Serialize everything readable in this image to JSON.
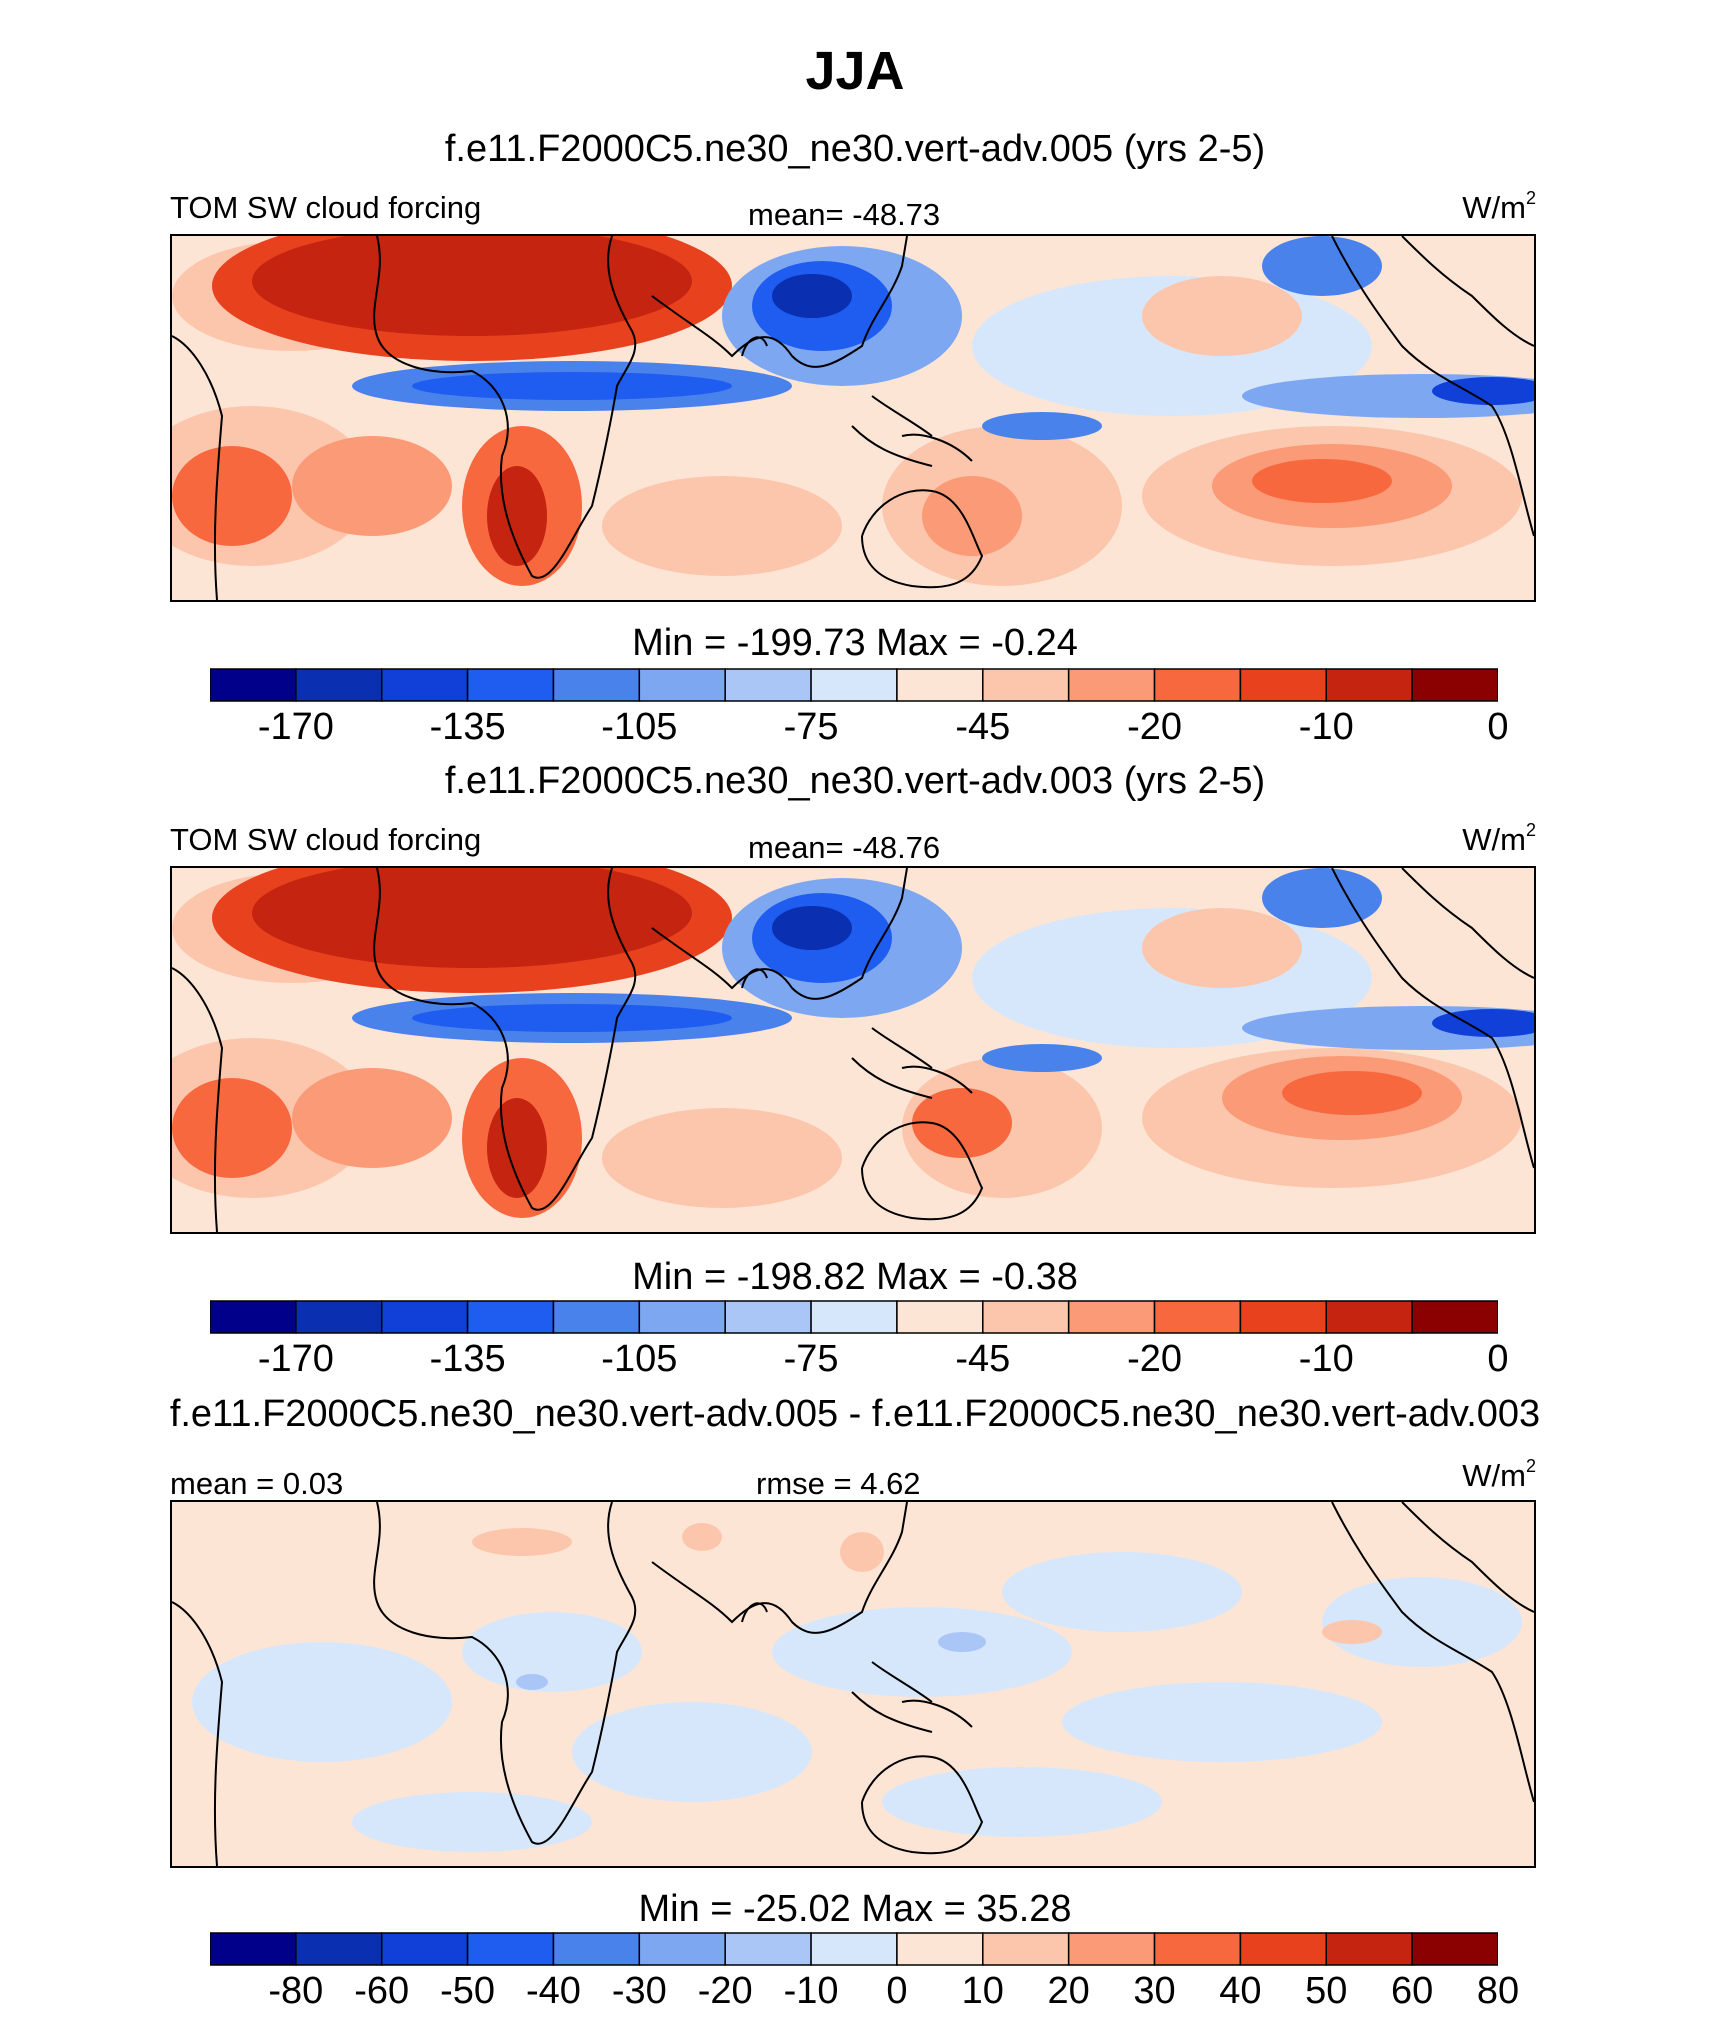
{
  "title": "JJA",
  "chart_data": [
    {
      "type": "heatmap",
      "title": "f.e11.F2000C5.ne30_ne30.vert-adv.005 (yrs 2-5)",
      "left_label": "TOM SW cloud forcing",
      "center_label": "mean= -48.73",
      "units": "W/m",
      "units_sup": "2",
      "minmax": "Min = -199.73 Max =  -0.24",
      "colorbar_ticks": [
        "-170",
        "-135",
        "-105",
        "-75",
        "-45",
        "-20",
        "-10",
        "0"
      ],
      "tick_boundaries": [
        1,
        3,
        5,
        7,
        9,
        11,
        13,
        15
      ],
      "min": -199.73,
      "max": -0.24,
      "mean": -48.73
    },
    {
      "type": "heatmap",
      "title": "f.e11.F2000C5.ne30_ne30.vert-adv.003 (yrs 2-5)",
      "left_label": "TOM SW cloud forcing",
      "center_label": "mean= -48.76",
      "units": "W/m",
      "units_sup": "2",
      "minmax": "Min = -198.82 Max =  -0.38",
      "colorbar_ticks": [
        "-170",
        "-135",
        "-105",
        "-75",
        "-45",
        "-20",
        "-10",
        "0"
      ],
      "tick_boundaries": [
        1,
        3,
        5,
        7,
        9,
        11,
        13,
        15
      ],
      "min": -198.82,
      "max": -0.38,
      "mean": -48.76
    },
    {
      "type": "heatmap",
      "title": "f.e11.F2000C5.ne30_ne30.vert-adv.005 - f.e11.F2000C5.ne30_ne30.vert-adv.003",
      "left_label": "mean =   0.03",
      "center_label": "rmse =   4.62",
      "units": "W/m",
      "units_sup": "2",
      "minmax": "Min = -25.02 Max =  35.28",
      "colorbar_ticks": [
        "-80",
        "-60",
        "-50",
        "-40",
        "-30",
        "-20",
        "-10",
        "0",
        "10",
        "20",
        "30",
        "40",
        "50",
        "60",
        "80"
      ],
      "tick_boundaries": [
        1,
        2,
        3,
        4,
        5,
        6,
        7,
        8,
        9,
        10,
        11,
        12,
        13,
        14,
        15
      ],
      "min": -25.02,
      "max": 35.28,
      "mean": 0.03,
      "rmse": 4.62
    }
  ],
  "colors": {
    "palette": [
      "#00008b",
      "#0a2fb0",
      "#1040d8",
      "#1f5cf0",
      "#4a82ec",
      "#7ea7f2",
      "#aac6f7",
      "#d7e7fb",
      "#fde5d6",
      "#fcc6ad",
      "#fb9a77",
      "#f8683f",
      "#e8411e",
      "#c52410",
      "#8b0000"
    ],
    "frame": "#000000",
    "coast": "#000000"
  }
}
